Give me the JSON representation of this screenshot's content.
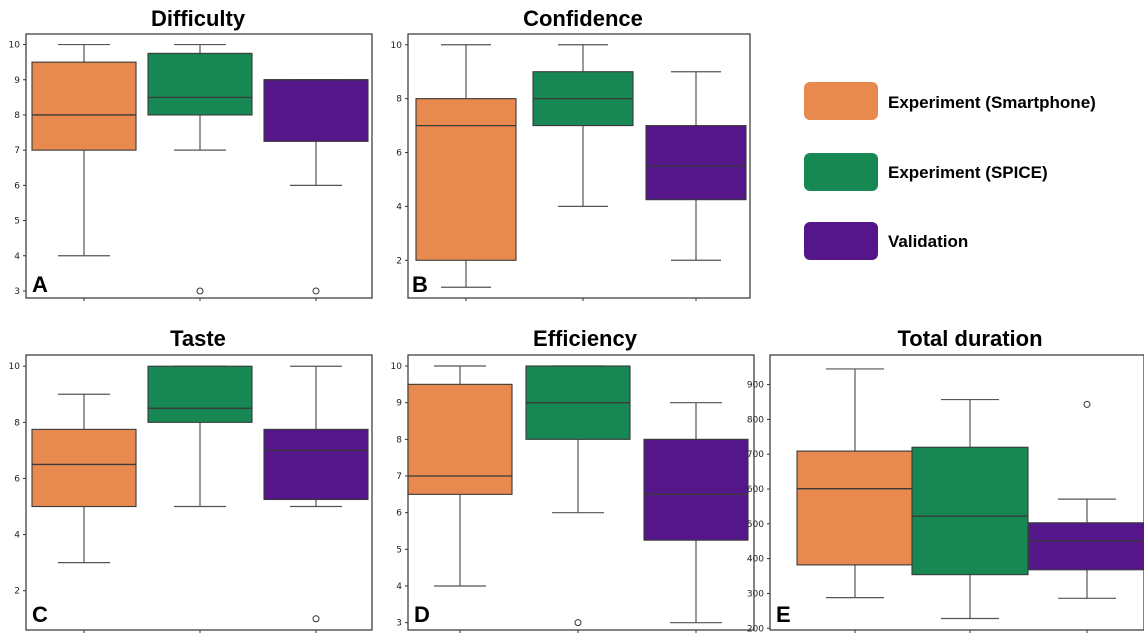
{
  "colors": {
    "smartphone": "#E8894F",
    "spice": "#178753",
    "validation": "#541688",
    "box_edge": "#3a3a3a",
    "whisker": "#555555"
  },
  "legend": {
    "items": [
      {
        "label": "Experiment (Smartphone)",
        "color_key": "smartphone"
      },
      {
        "label": "Experiment (SPICE)",
        "color_key": "spice"
      },
      {
        "label": "Validation",
        "color_key": "validation"
      }
    ]
  },
  "chart_data": [
    {
      "type": "box",
      "title": "Difficulty",
      "letter": "A",
      "ylim": [
        2.8,
        10.3
      ],
      "yticks": [
        3,
        4,
        5,
        6,
        7,
        8,
        9,
        10
      ],
      "series": [
        {
          "color_key": "smartphone",
          "min": 4,
          "q1": 7,
          "median": 8,
          "q3": 9.5,
          "max": 10,
          "outliers": []
        },
        {
          "color_key": "spice",
          "min": 7,
          "q1": 8,
          "median": 8.5,
          "q3": 9.75,
          "max": 10,
          "outliers": [
            3
          ]
        },
        {
          "color_key": "validation",
          "min": 6,
          "q1": 7.25,
          "median": 9,
          "q3": 9,
          "max": 9,
          "outliers": [
            3
          ]
        }
      ]
    },
    {
      "type": "box",
      "title": "Confidence",
      "letter": "B",
      "ylim": [
        0.6,
        10.4
      ],
      "yticks": [
        2,
        4,
        6,
        8,
        10
      ],
      "series": [
        {
          "color_key": "smartphone",
          "min": 1,
          "q1": 2,
          "median": 7,
          "q3": 8,
          "max": 10,
          "outliers": []
        },
        {
          "color_key": "spice",
          "min": 4,
          "q1": 7,
          "median": 8,
          "q3": 9,
          "max": 10,
          "outliers": []
        },
        {
          "color_key": "validation",
          "min": 2,
          "q1": 4.25,
          "median": 5.5,
          "q3": 7,
          "max": 9,
          "outliers": []
        }
      ]
    },
    {
      "type": "box",
      "title": "Taste",
      "letter": "C",
      "ylim": [
        0.6,
        10.4
      ],
      "yticks": [
        2,
        4,
        6,
        8,
        10
      ],
      "series": [
        {
          "color_key": "smartphone",
          "min": 3,
          "q1": 5,
          "median": 6.5,
          "q3": 7.75,
          "max": 9,
          "outliers": []
        },
        {
          "color_key": "spice",
          "min": 5,
          "q1": 8,
          "median": 8.5,
          "q3": 10,
          "max": 10,
          "outliers": []
        },
        {
          "color_key": "validation",
          "min": 5,
          "q1": 5.25,
          "median": 7,
          "q3": 7.75,
          "max": 10,
          "outliers": [
            1
          ]
        }
      ]
    },
    {
      "type": "box",
      "title": "Efficiency",
      "letter": "D",
      "ylim": [
        2.8,
        10.3
      ],
      "yticks": [
        3,
        4,
        5,
        6,
        7,
        8,
        9,
        10
      ],
      "series": [
        {
          "color_key": "smartphone",
          "min": 4,
          "q1": 6.5,
          "median": 7,
          "q3": 9.5,
          "max": 10,
          "outliers": []
        },
        {
          "color_key": "spice",
          "min": 6,
          "q1": 8,
          "median": 9,
          "q3": 10,
          "max": 10,
          "outliers": [
            3
          ]
        },
        {
          "color_key": "validation",
          "min": 3,
          "q1": 5.25,
          "median": 6.5,
          "q3": 8,
          "max": 9,
          "outliers": []
        }
      ]
    },
    {
      "type": "box",
      "title": "Total duration",
      "letter": "E",
      "ylim": [
        195,
        985
      ],
      "yticks": [
        200,
        300,
        400,
        500,
        600,
        700,
        800,
        900
      ],
      "series": [
        {
          "color_key": "smartphone",
          "min": 288,
          "q1": 382,
          "median": 601,
          "q3": 709,
          "max": 945,
          "outliers": []
        },
        {
          "color_key": "spice",
          "min": 228,
          "q1": 354,
          "median": 522,
          "q3": 720,
          "max": 857,
          "outliers": []
        },
        {
          "color_key": "validation",
          "min": 286,
          "q1": 368,
          "median": 451,
          "q3": 503,
          "max": 571,
          "outliers": [
            843
          ]
        }
      ]
    }
  ]
}
